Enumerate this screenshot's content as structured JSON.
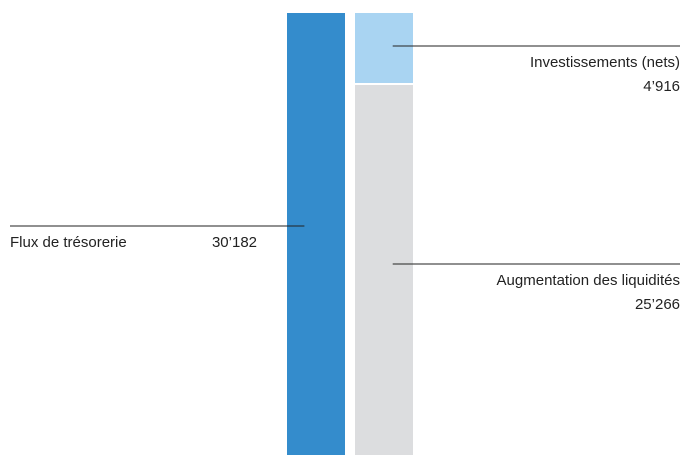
{
  "chart_data": {
    "type": "bar",
    "stacked": true,
    "categories": [
      null,
      null
    ],
    "series": [
      {
        "name": "Flux de trésorerie",
        "color": "#348ccc",
        "values": [
          30182,
          null
        ],
        "value_labels": [
          "30’182",
          null
        ]
      },
      {
        "name": "Augmentation des liquidités",
        "color": "#dcdddf",
        "values": [
          null,
          25266
        ],
        "value_labels": [
          null,
          "25’266"
        ]
      },
      {
        "name": "Investissements (nets)",
        "color": "#a9d4f2",
        "values": [
          null,
          4916
        ],
        "value_labels": [
          null,
          "4’916"
        ]
      }
    ]
  }
}
